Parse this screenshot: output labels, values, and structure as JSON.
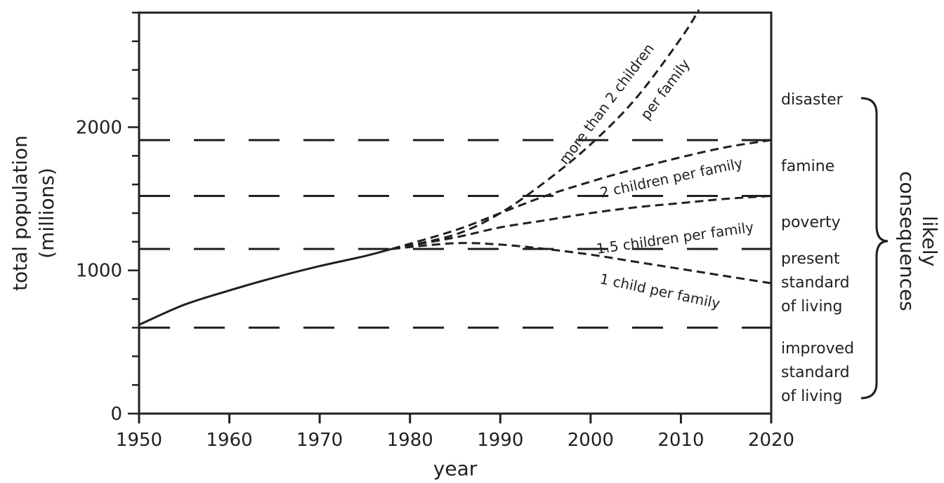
{
  "chart_data": {
    "type": "line",
    "xlabel": "year",
    "ylabel_line1": "total population",
    "ylabel_line2": "(millions)",
    "xlim": [
      1950,
      2020
    ],
    "ylim": [
      0,
      2800
    ],
    "xticks": [
      1950,
      1960,
      1970,
      1980,
      1990,
      2000,
      2010,
      2020
    ],
    "xtick_labels": [
      "1950",
      "1960",
      "1970",
      "1980",
      "1990",
      "2000",
      "2010",
      "2020"
    ],
    "yticks": [
      0,
      1000,
      2000
    ],
    "ytick_labels": [
      "0",
      "1000",
      "2000"
    ],
    "grid": false,
    "threshold_levels": [
      600,
      1150,
      1520,
      1910
    ],
    "historical": {
      "x": [
        1950,
        1955,
        1960,
        1965,
        1970,
        1975,
        1978
      ],
      "y": [
        620,
        760,
        860,
        950,
        1030,
        1100,
        1150
      ]
    },
    "series": [
      {
        "name": "more than 2 children per family",
        "x": [
          1978,
          1985,
          1990,
          1995,
          2000,
          2005,
          2010,
          2012
        ],
        "y": [
          1150,
          1250,
          1400,
          1620,
          1880,
          2200,
          2620,
          2820
        ]
      },
      {
        "name": "2 children per family",
        "x": [
          1978,
          1985,
          1990,
          1995,
          2000,
          2005,
          2010,
          2015,
          2020
        ],
        "y": [
          1150,
          1280,
          1400,
          1520,
          1620,
          1710,
          1790,
          1860,
          1910
        ]
      },
      {
        "name": "1.5 children per family",
        "x": [
          1978,
          1985,
          1990,
          1995,
          2000,
          2005,
          2010,
          2015,
          2020
        ],
        "y": [
          1150,
          1230,
          1300,
          1350,
          1400,
          1440,
          1470,
          1500,
          1520
        ]
      },
      {
        "name": "1 child per family",
        "x": [
          1978,
          1985,
          1990,
          1995,
          2000,
          2005,
          2010,
          2015,
          2020
        ],
        "y": [
          1150,
          1190,
          1180,
          1150,
          1110,
          1060,
          1010,
          960,
          910
        ]
      }
    ],
    "series_label_lines": {
      "more_than_2_a": "more than 2 children",
      "more_than_2_b": "per family",
      "two": "2 children per family",
      "one_five": "1.5 children per family",
      "one": "1 child per family"
    },
    "consequences": {
      "title_line1": "likely",
      "title_line2": "consequences",
      "disaster": "disaster",
      "famine": "famine",
      "poverty": "poverty",
      "present_1": "present",
      "present_2": "standard",
      "present_3": "of living",
      "improved_1": "improved",
      "improved_2": "standard",
      "improved_3": "of living"
    }
  }
}
